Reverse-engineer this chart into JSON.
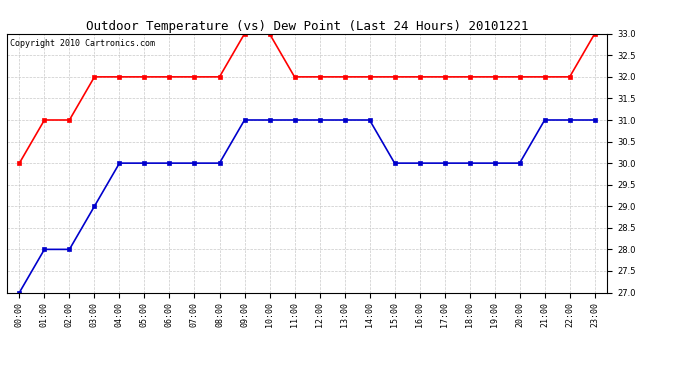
{
  "title": "Outdoor Temperature (vs) Dew Point (Last 24 Hours) 20101221",
  "copyright_text": "Copyright 2010 Cartronics.com",
  "hours": [
    "00:00",
    "01:00",
    "02:00",
    "03:00",
    "04:00",
    "05:00",
    "06:00",
    "07:00",
    "08:00",
    "09:00",
    "10:00",
    "11:00",
    "12:00",
    "13:00",
    "14:00",
    "15:00",
    "16:00",
    "17:00",
    "18:00",
    "19:00",
    "20:00",
    "21:00",
    "22:00",
    "23:00"
  ],
  "temp_red": [
    30.0,
    31.0,
    31.0,
    32.0,
    32.0,
    32.0,
    32.0,
    32.0,
    32.0,
    33.0,
    33.0,
    32.0,
    32.0,
    32.0,
    32.0,
    32.0,
    32.0,
    32.0,
    32.0,
    32.0,
    32.0,
    32.0,
    32.0,
    33.0
  ],
  "dew_blue": [
    27.0,
    28.0,
    28.0,
    29.0,
    30.0,
    30.0,
    30.0,
    30.0,
    30.0,
    31.0,
    31.0,
    31.0,
    31.0,
    31.0,
    31.0,
    30.0,
    30.0,
    30.0,
    30.0,
    30.0,
    30.0,
    31.0,
    31.0,
    31.0
  ],
  "ylim_min": 27.0,
  "ylim_max": 33.0,
  "ytick_step": 0.5,
  "red_color": "#ff0000",
  "blue_color": "#0000cc",
  "bg_color": "#ffffff",
  "grid_color": "#bbbbbb",
  "title_fontsize": 9,
  "copyright_fontsize": 6,
  "tick_fontsize": 6,
  "marker": "s",
  "markersize": 2.5,
  "linewidth": 1.2
}
